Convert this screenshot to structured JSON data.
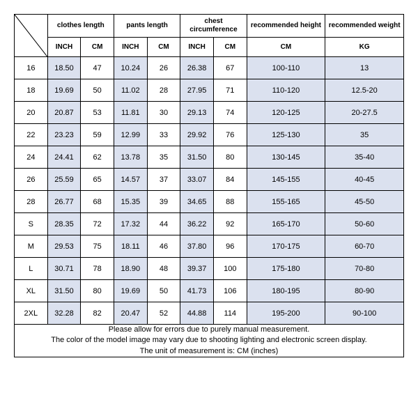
{
  "table": {
    "type": "table",
    "colors": {
      "border": "#000000",
      "background": "#ffffff",
      "tinted": "#dbe1ef",
      "text": "#000000"
    },
    "typography": {
      "header_fontsize": 10,
      "body_fontsize": 11,
      "footer_fontsize": 11.5,
      "font_family": "Arial"
    },
    "headers": {
      "clothes_length": "clothes length",
      "pants_length": "pants length",
      "chest_circumference": "chest circumference",
      "recommended_height": "recommended height",
      "recommended_weight": "recommended weight"
    },
    "subheaders": {
      "inch": "INCH",
      "cm": "CM",
      "rh_unit": "CM",
      "rw_unit": "KG"
    },
    "rows": [
      {
        "size": "16",
        "clothes_in": "18.50",
        "clothes_cm": "47",
        "pants_in": "10.24",
        "pants_cm": "26",
        "chest_in": "26.38",
        "chest_cm": "67",
        "rh": "100-110",
        "rw": "13"
      },
      {
        "size": "18",
        "clothes_in": "19.69",
        "clothes_cm": "50",
        "pants_in": "11.02",
        "pants_cm": "28",
        "chest_in": "27.95",
        "chest_cm": "71",
        "rh": "110-120",
        "rw": "12.5-20"
      },
      {
        "size": "20",
        "clothes_in": "20.87",
        "clothes_cm": "53",
        "pants_in": "11.81",
        "pants_cm": "30",
        "chest_in": "29.13",
        "chest_cm": "74",
        "rh": "120-125",
        "rw": "20-27.5"
      },
      {
        "size": "22",
        "clothes_in": "23.23",
        "clothes_cm": "59",
        "pants_in": "12.99",
        "pants_cm": "33",
        "chest_in": "29.92",
        "chest_cm": "76",
        "rh": "125-130",
        "rw": "35"
      },
      {
        "size": "24",
        "clothes_in": "24.41",
        "clothes_cm": "62",
        "pants_in": "13.78",
        "pants_cm": "35",
        "chest_in": "31.50",
        "chest_cm": "80",
        "rh": "130-145",
        "rw": "35-40"
      },
      {
        "size": "26",
        "clothes_in": "25.59",
        "clothes_cm": "65",
        "pants_in": "14.57",
        "pants_cm": "37",
        "chest_in": "33.07",
        "chest_cm": "84",
        "rh": "145-155",
        "rw": "40-45"
      },
      {
        "size": "28",
        "clothes_in": "26.77",
        "clothes_cm": "68",
        "pants_in": "15.35",
        "pants_cm": "39",
        "chest_in": "34.65",
        "chest_cm": "88",
        "rh": "155-165",
        "rw": "45-50"
      },
      {
        "size": "S",
        "clothes_in": "28.35",
        "clothes_cm": "72",
        "pants_in": "17.32",
        "pants_cm": "44",
        "chest_in": "36.22",
        "chest_cm": "92",
        "rh": "165-170",
        "rw": "50-60"
      },
      {
        "size": "M",
        "clothes_in": "29.53",
        "clothes_cm": "75",
        "pants_in": "18.11",
        "pants_cm": "46",
        "chest_in": "37.80",
        "chest_cm": "96",
        "rh": "170-175",
        "rw": "60-70"
      },
      {
        "size": "L",
        "clothes_in": "30.71",
        "clothes_cm": "78",
        "pants_in": "18.90",
        "pants_cm": "48",
        "chest_in": "39.37",
        "chest_cm": "100",
        "rh": "175-180",
        "rw": "70-80"
      },
      {
        "size": "XL",
        "clothes_in": "31.50",
        "clothes_cm": "80",
        "pants_in": "19.69",
        "pants_cm": "50",
        "chest_in": "41.73",
        "chest_cm": "106",
        "rh": "180-195",
        "rw": "80-90"
      },
      {
        "size": "2XL",
        "clothes_in": "32.28",
        "clothes_cm": "82",
        "pants_in": "20.47",
        "pants_cm": "52",
        "chest_in": "44.88",
        "chest_cm": "114",
        "rh": "195-200",
        "rw": "90-100"
      }
    ],
    "footer": {
      "line1": "Please allow for errors due to purely manual measurement.",
      "line2": "The color of the model image may vary due to shooting lighting and electronic screen display.",
      "line3": "The unit of measurement is: CM (inches)"
    }
  }
}
